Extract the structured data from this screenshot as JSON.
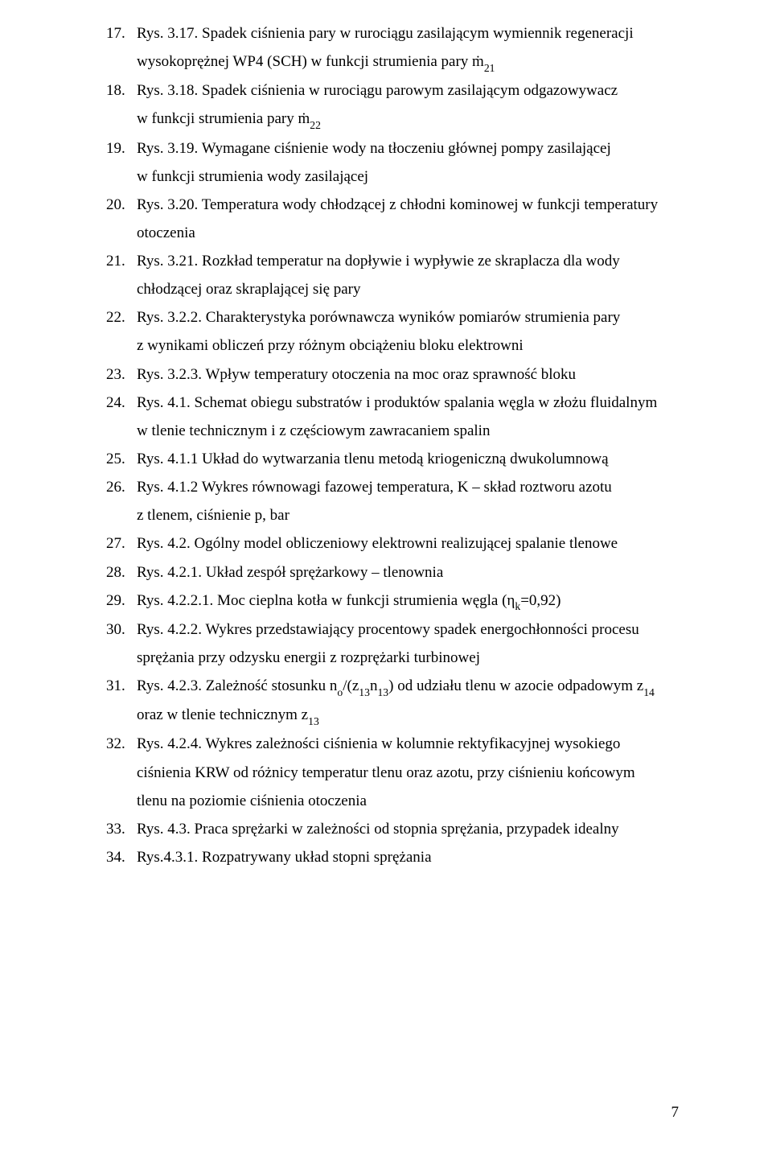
{
  "page_number": "7",
  "items": [
    {
      "num": "17.",
      "lines": [
        "Rys. 3.17. Spadek ciśnienia pary w rurociągu zasilającym wymiennik regeneracji",
        "wysokoprężnej WP4 (SCH) w funkcji strumienia pary ṁ<span class=\"math-sub\">21</span>"
      ]
    },
    {
      "num": "18.",
      "lines": [
        "Rys. 3.18. Spadek ciśnienia w rurociągu parowym zasilającym odgazowywacz",
        "w funkcji strumienia pary ṁ<span class=\"math-sub\">22</span>"
      ]
    },
    {
      "num": "19.",
      "lines": [
        "Rys. 3.19. Wymagane ciśnienie wody na tłoczeniu głównej pompy zasilającej",
        "w funkcji strumienia wody zasilającej"
      ]
    },
    {
      "num": "20.",
      "lines": [
        "Rys. 3.20. Temperatura wody chłodzącej z chłodni kominowej w funkcji  temperatury",
        "otoczenia"
      ]
    },
    {
      "num": "21.",
      "lines": [
        "Rys. 3.21. Rozkład temperatur na dopływie i wypływie ze skraplacza dla wody",
        "chłodzącej oraz skraplającej się pary"
      ]
    },
    {
      "num": "22.",
      "lines": [
        "Rys. 3.2.2. Charakterystyka porównawcza wyników pomiarów strumienia pary",
        "z wynikami obliczeń przy różnym obciążeniu bloku elektrowni"
      ]
    },
    {
      "num": "23.",
      "lines": [
        "Rys. 3.2.3. Wpływ temperatury otoczenia na moc oraz sprawność bloku"
      ]
    },
    {
      "num": "24.",
      "lines": [
        "Rys. 4.1. Schemat obiegu substratów i produktów spalania węgla w złożu fluidalnym",
        "w tlenie technicznym i z częściowym zawracaniem spalin"
      ]
    },
    {
      "num": "25.",
      "lines": [
        "Rys. 4.1.1 Układ do wytwarzania tlenu metodą kriogeniczną dwukolumnową"
      ]
    },
    {
      "num": "26.",
      "lines": [
        "Rys. 4.1.2 Wykres równowagi fazowej temperatura, K – skład roztworu azotu",
        "z tlenem, ciśnienie p, bar"
      ]
    },
    {
      "num": "27.",
      "lines": [
        "Rys. 4.2.  Ogólny model obliczeniowy elektrowni realizującej spalanie tlenowe"
      ]
    },
    {
      "num": "28.",
      "lines": [
        "Rys. 4.2.1. Układ zespół sprężarkowy – tlenownia"
      ]
    },
    {
      "num": "29.",
      "lines": [
        "Rys. 4.2.2.1. Moc cieplna kotła w funkcji strumienia węgla (η<span class=\"math-sub\">k</span>=0,92)"
      ]
    },
    {
      "num": "30.",
      "lines": [
        "Rys. 4.2.2. Wykres przedstawiający procentowy spadek energochłonności procesu",
        "sprężania przy odzysku energii z rozprężarki turbinowej"
      ]
    },
    {
      "num": "31.",
      "lines": [
        "Rys. 4.2.3. Zależność stosunku n<span class=\"math-sub\">o</span>/(z<span class=\"math-sub\">13</span>n<span class=\"math-sub\">13</span>) od udziału tlenu w azocie odpadowym z<span class=\"math-sub\">14</span>",
        "oraz w tlenie technicznym z<span class=\"math-sub\">13</span>"
      ]
    },
    {
      "num": "32.",
      "lines": [
        "Rys. 4.2.4. Wykres zależności ciśnienia w kolumnie rektyfikacyjnej wysokiego",
        "ciśnienia KRW od różnicy temperatur tlenu oraz azotu, przy ciśnieniu końcowym",
        "tlenu na poziomie ciśnienia otoczenia"
      ]
    },
    {
      "num": "33.",
      "lines": [
        "Rys. 4.3. Praca sprężarki w zależności od stopnia sprężania, przypadek idealny"
      ]
    },
    {
      "num": "34.",
      "lines": [
        "Rys.4.3.1. Rozpatrywany układ stopni sprężania"
      ]
    }
  ]
}
